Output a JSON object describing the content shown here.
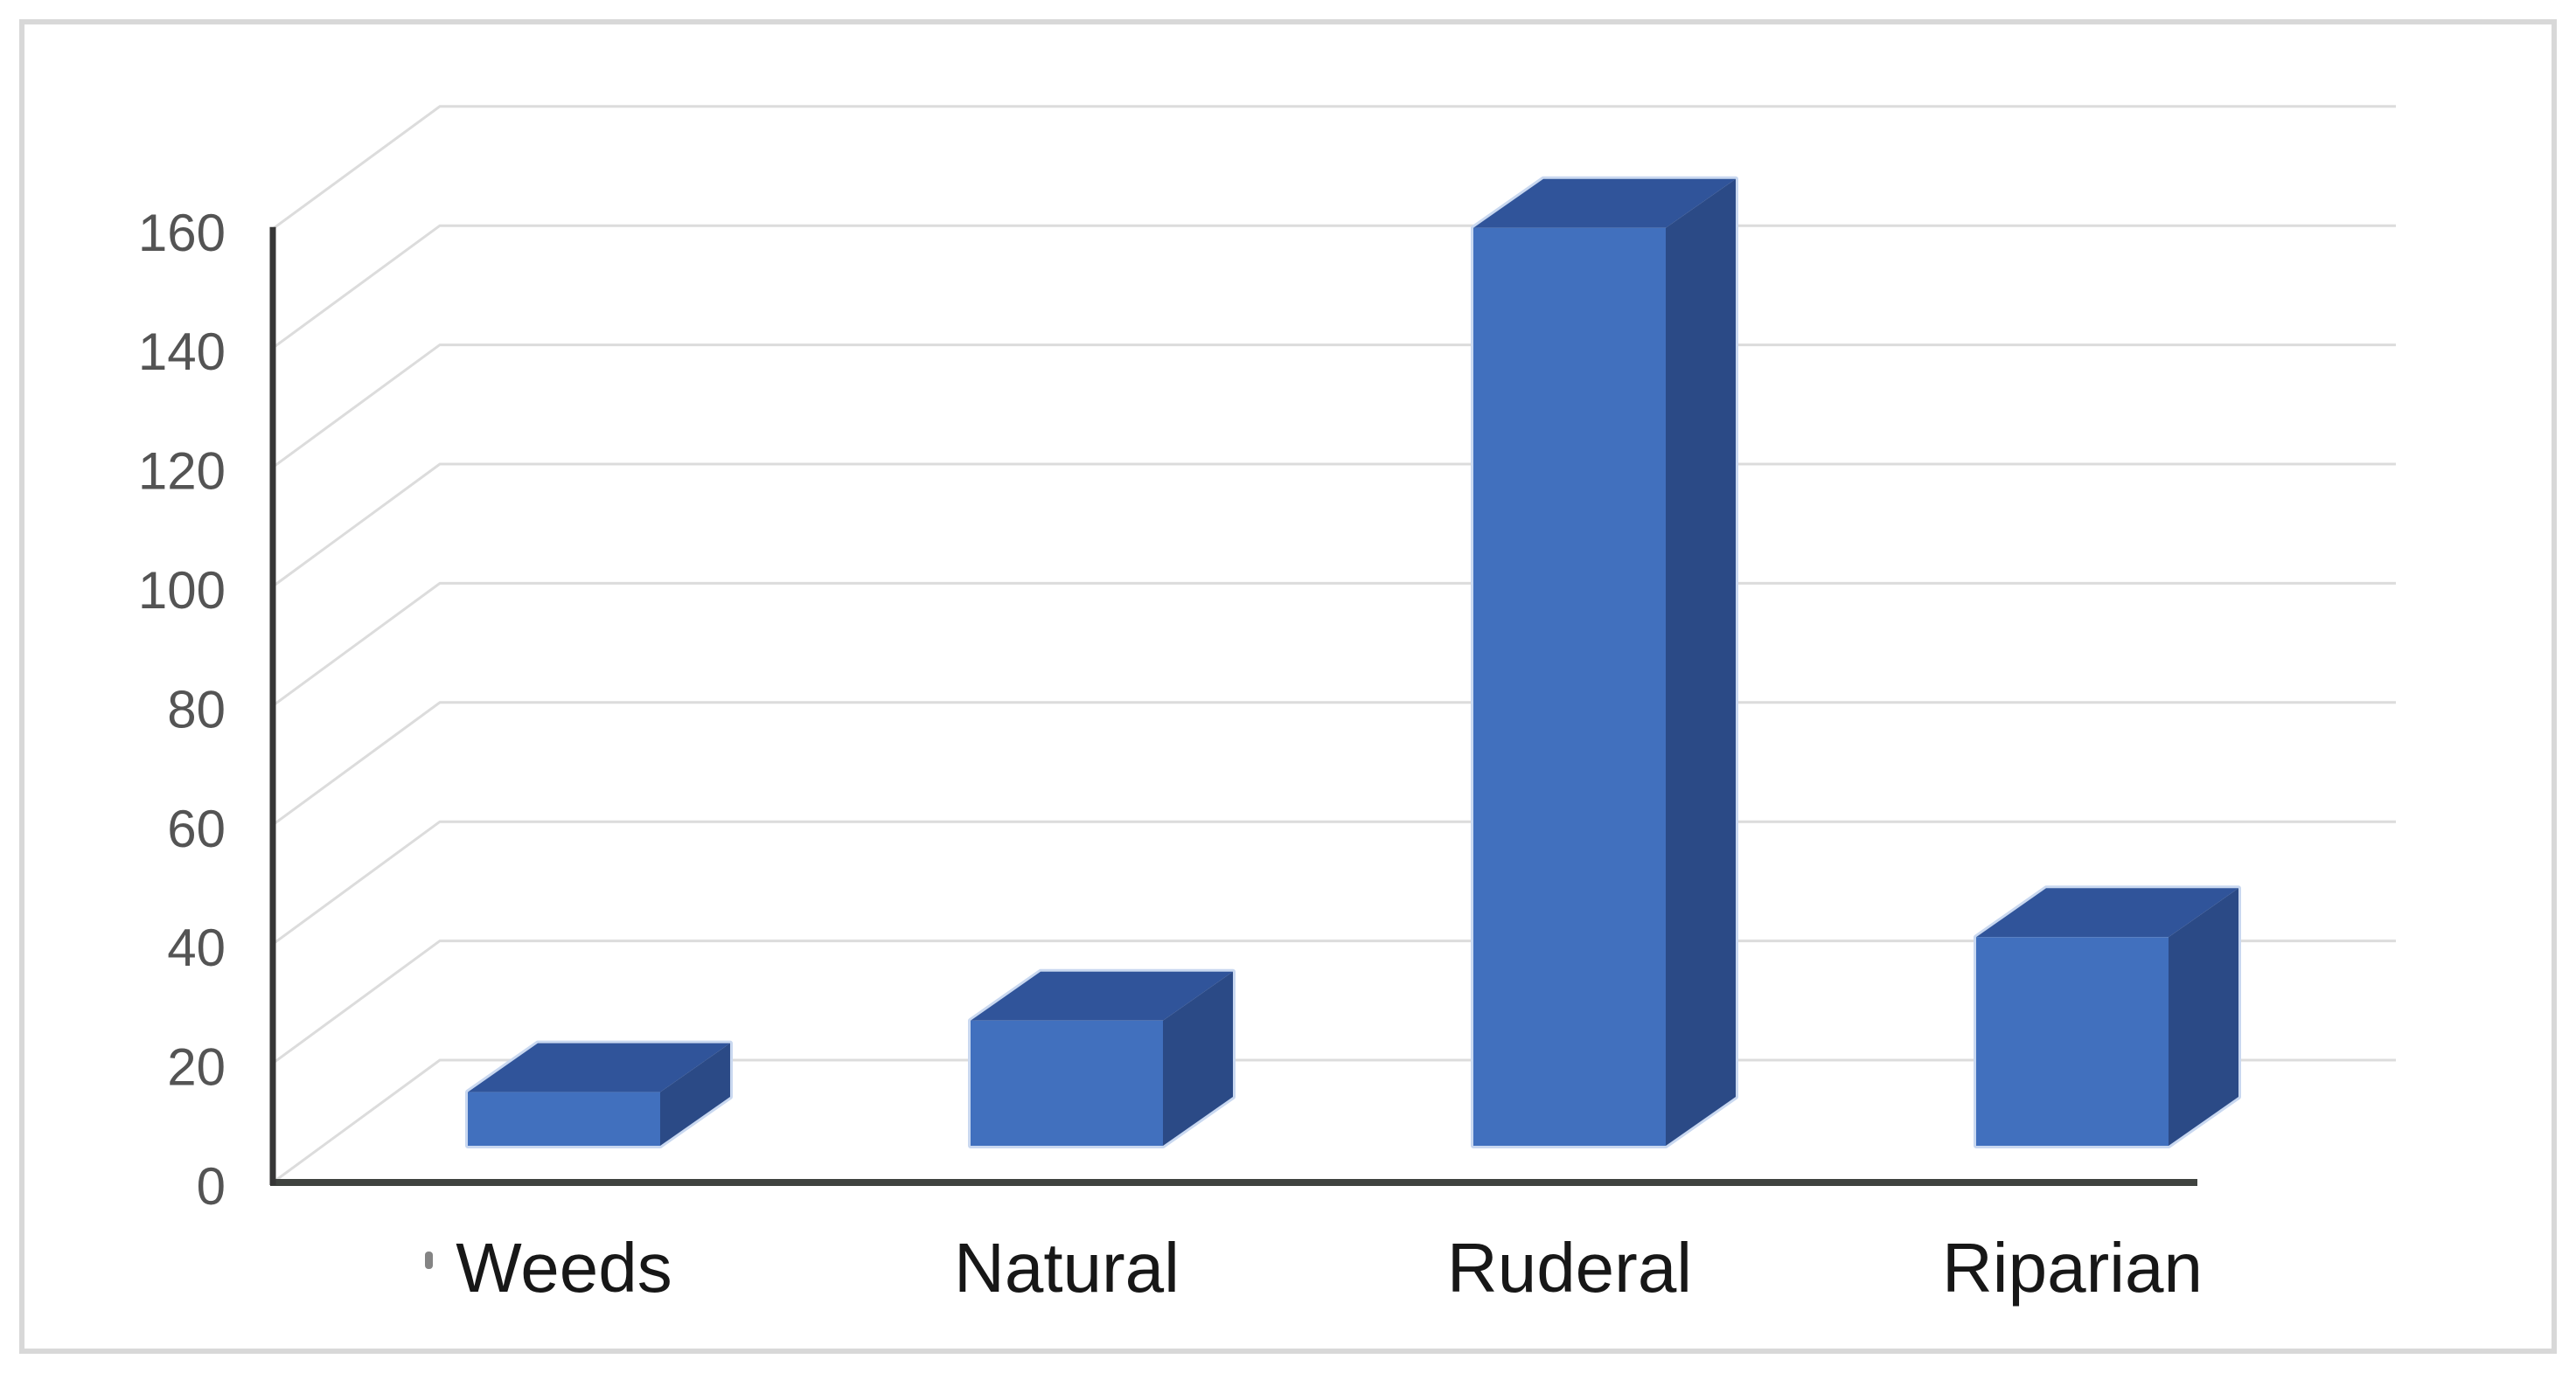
{
  "figure": {
    "background_color": "#FFFFFF",
    "border_color": "#D8D8D8",
    "title": "",
    "legend_visible": false
  },
  "chart_data": {
    "type": "bar",
    "subtype": "3d-column",
    "title": "",
    "xlabel": "",
    "ylabel": "",
    "categories": [
      "Weeds",
      "Natural",
      "Ruderal",
      "Riparian"
    ],
    "values": [
      9,
      21,
      154,
      35
    ],
    "ylim": [
      0,
      160
    ],
    "ytick_step": 20,
    "yticks": [
      0,
      20,
      40,
      60,
      80,
      100,
      120,
      140,
      160
    ],
    "grid": true,
    "legend_position": "none",
    "colors": {
      "bar_front": "#4170BE",
      "bar_top": "#30549A",
      "bar_side": "#2B4A86",
      "bar_outline": "#C9D8F0",
      "gridline": "#DCDCDC",
      "y_axis_line": "#363636",
      "floor_line": "#3F433F",
      "ytick_text": "#545454",
      "category_text": "#171717"
    }
  }
}
